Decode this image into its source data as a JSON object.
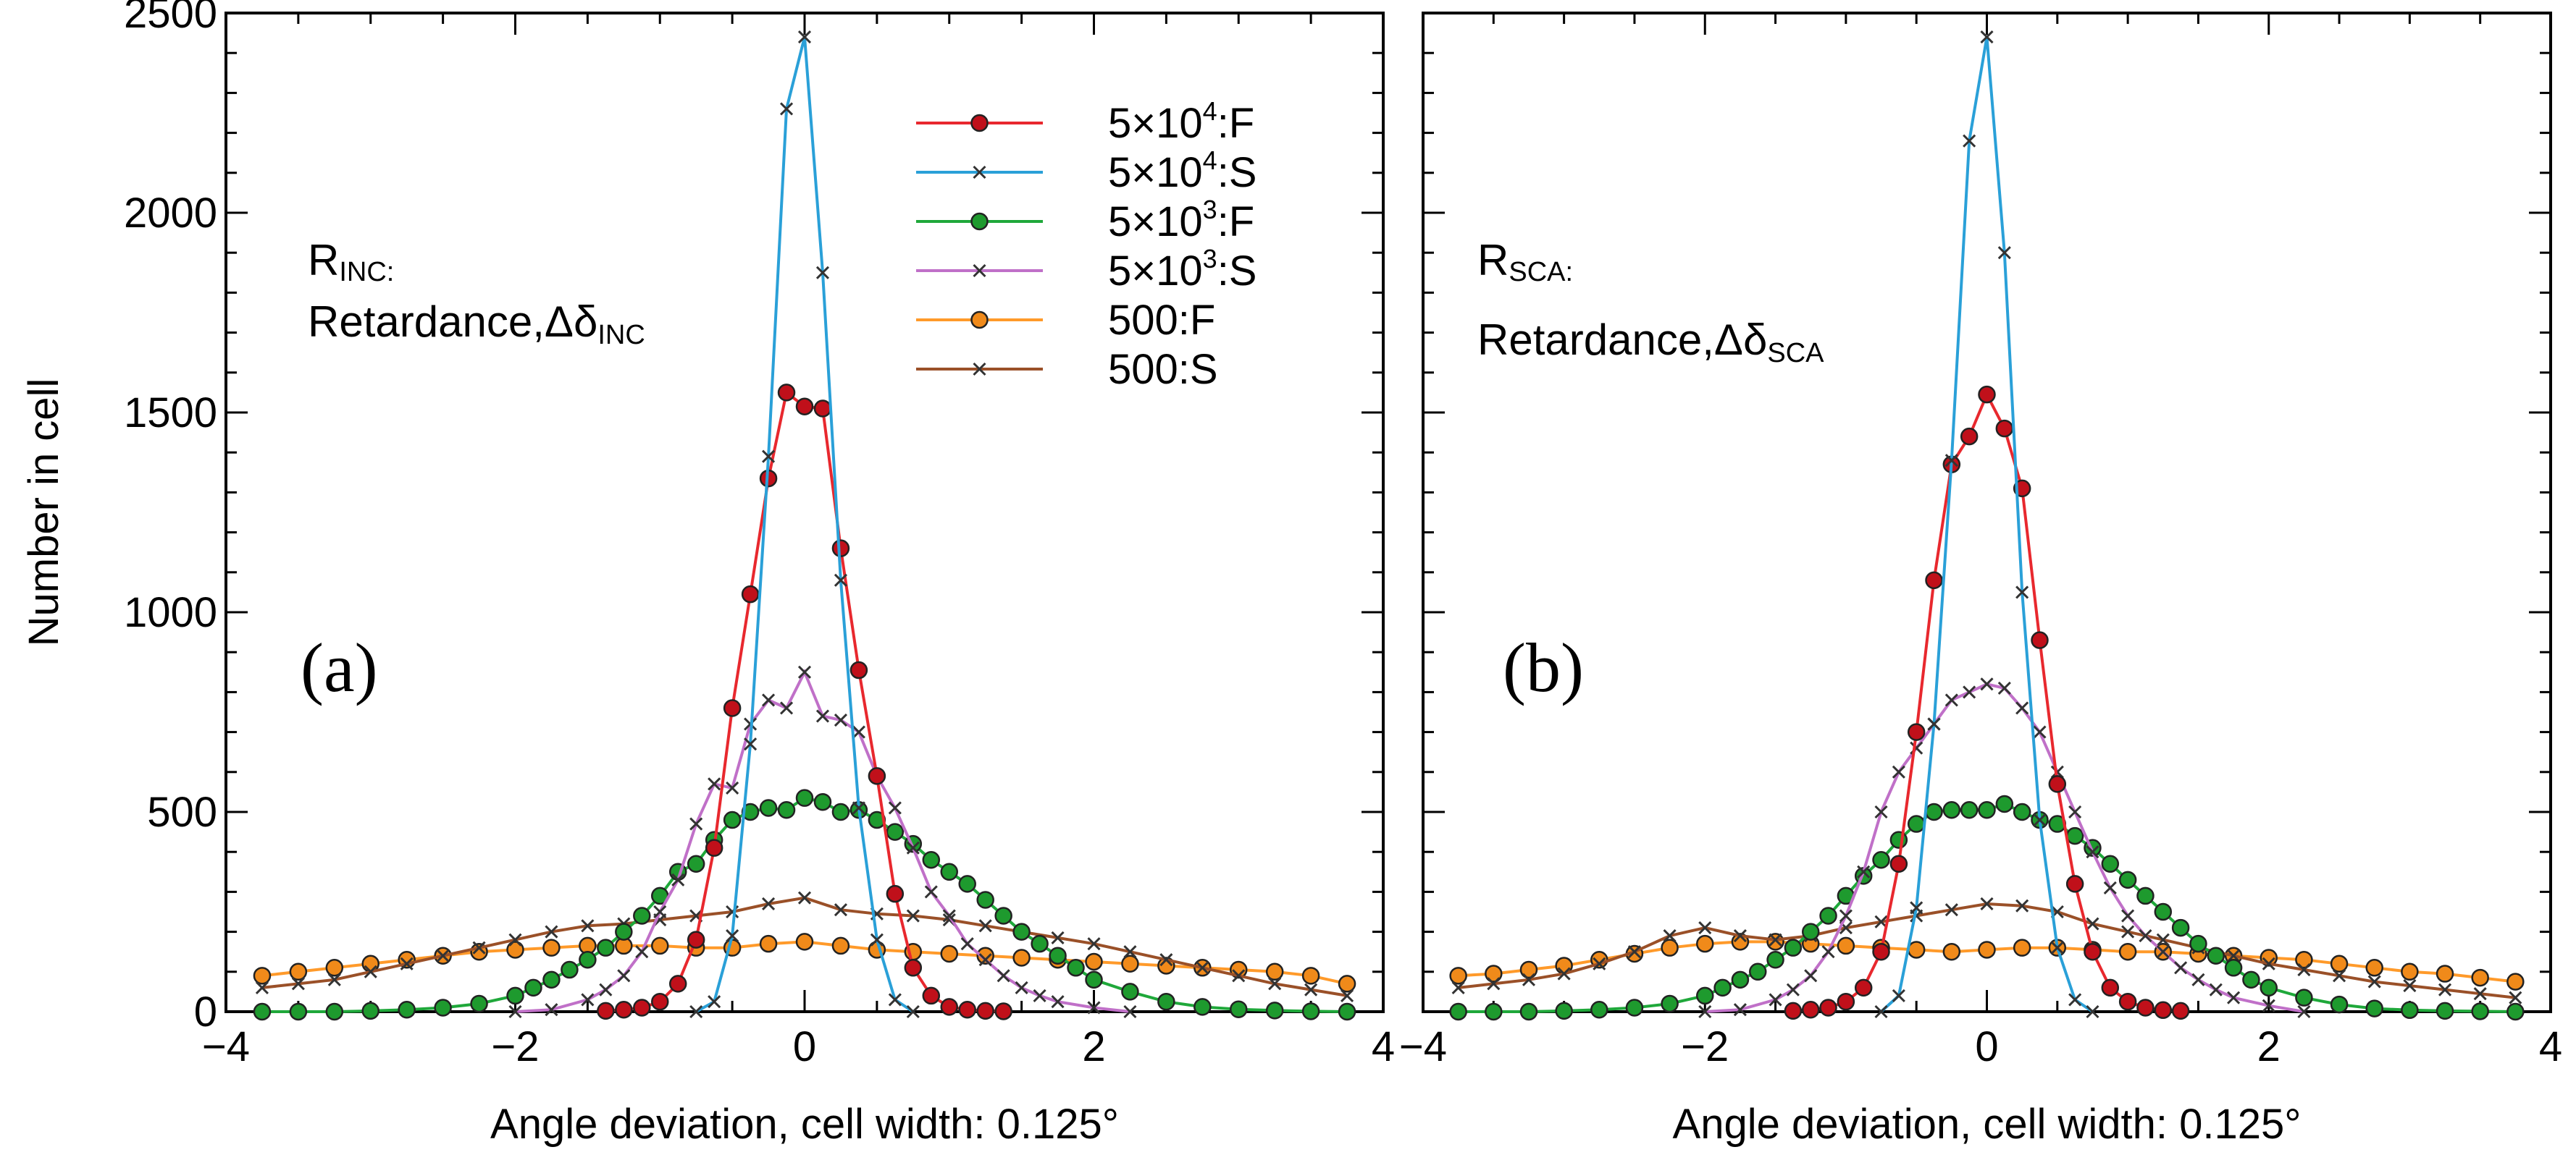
{
  "chart_data": [
    {
      "type": "line",
      "panel_label": "(a)",
      "annotation": {
        "line1_main": "R",
        "line1_sub": "INC:",
        "line2_main": "Retardance,Δδ",
        "line2_sub": "INC"
      },
      "xlabel": "Angle deviation, cell width: 0.125°",
      "ylabel": "Number in cell",
      "xlim": [
        -4,
        4
      ],
      "ylim": [
        0,
        2500
      ],
      "xticks": [
        -4,
        -2,
        0,
        2,
        4
      ],
      "xtick_labels": [
        "−4",
        "−2",
        "0",
        "2",
        "4"
      ],
      "yticks": [
        0,
        500,
        1000,
        1500,
        2000,
        2500
      ],
      "ytick_labels": [
        "0",
        "500",
        "1000",
        "1500",
        "2000",
        "2500"
      ],
      "legend": {
        "position": "top-center",
        "entries": [
          {
            "base": "5×10",
            "exp": "4",
            "suffix": ":F"
          },
          {
            "base": "5×10",
            "exp": "4",
            "suffix": ":S"
          },
          {
            "base": "5×10",
            "exp": "3",
            "suffix": ":F"
          },
          {
            "base": "5×10",
            "exp": "3",
            "suffix": ":S"
          },
          {
            "base": "500",
            "exp": "",
            "suffix": ":F"
          },
          {
            "base": "500",
            "exp": "",
            "suffix": ":S"
          }
        ]
      },
      "series": [
        {
          "name": "5×10^4:F",
          "color": "#e8282e",
          "marker": "circle",
          "marker_fill": "#c0101a",
          "x": [
            -1.375,
            -1.25,
            -1.125,
            -1.0,
            -0.875,
            -0.75,
            -0.625,
            -0.5,
            -0.375,
            -0.25,
            -0.125,
            0.0,
            0.125,
            0.25,
            0.375,
            0.5,
            0.625,
            0.75,
            0.875,
            1.0,
            1.125,
            1.25,
            1.375
          ],
          "values": [
            2,
            5,
            10,
            25,
            70,
            180,
            410,
            760,
            1045,
            1335,
            1550,
            1515,
            1510,
            1160,
            855,
            590,
            295,
            110,
            40,
            12,
            5,
            2,
            1
          ]
        },
        {
          "name": "5×10^4:S",
          "color": "#2aa0d8",
          "marker": "x",
          "marker_fill": "#333333",
          "x": [
            -0.75,
            -0.625,
            -0.5,
            -0.375,
            -0.25,
            -0.125,
            0.0,
            0.125,
            0.25,
            0.375,
            0.5,
            0.625,
            0.75
          ],
          "values": [
            0,
            25,
            190,
            670,
            1390,
            2260,
            2440,
            1850,
            1080,
            510,
            180,
            30,
            0
          ]
        },
        {
          "name": "5×10^3:F",
          "color": "#1fa83a",
          "marker": "circle",
          "marker_fill": "#1e9a2e",
          "x": [
            -3.75,
            -3.5,
            -3.25,
            -3.0,
            -2.75,
            -2.5,
            -2.25,
            -2.0,
            -1.875,
            -1.75,
            -1.625,
            -1.5,
            -1.375,
            -1.25,
            -1.125,
            -1.0,
            -0.875,
            -0.75,
            -0.625,
            -0.5,
            -0.375,
            -0.25,
            -0.125,
            0.0,
            0.125,
            0.25,
            0.375,
            0.5,
            0.625,
            0.75,
            0.875,
            1.0,
            1.125,
            1.25,
            1.375,
            1.5,
            1.625,
            1.75,
            1.875,
            2.0,
            2.25,
            2.5,
            2.75,
            3.0,
            3.25,
            3.5,
            3.75
          ],
          "values": [
            0,
            0,
            0,
            2,
            5,
            10,
            20,
            40,
            60,
            80,
            105,
            130,
            160,
            200,
            240,
            290,
            350,
            370,
            430,
            480,
            500,
            510,
            505,
            535,
            525,
            500,
            505,
            480,
            450,
            420,
            380,
            350,
            320,
            280,
            240,
            200,
            170,
            140,
            110,
            80,
            50,
            25,
            12,
            6,
            3,
            1,
            0
          ]
        },
        {
          "name": "5×10^3:S",
          "color": "#c070c8",
          "marker": "x",
          "marker_fill": "#333333",
          "x": [
            -2.0,
            -1.75,
            -1.5,
            -1.375,
            -1.25,
            -1.125,
            -1.0,
            -0.875,
            -0.75,
            -0.625,
            -0.5,
            -0.375,
            -0.25,
            -0.125,
            0.0,
            0.125,
            0.25,
            0.375,
            0.5,
            0.625,
            0.75,
            0.875,
            1.0,
            1.125,
            1.25,
            1.375,
            1.5,
            1.625,
            1.75,
            2.0,
            2.25
          ],
          "values": [
            0,
            5,
            30,
            55,
            90,
            150,
            250,
            330,
            470,
            570,
            560,
            720,
            780,
            760,
            850,
            740,
            730,
            700,
            590,
            510,
            410,
            300,
            240,
            170,
            130,
            90,
            60,
            40,
            25,
            10,
            0
          ]
        },
        {
          "name": "500:F",
          "color": "#ff9a2a",
          "marker": "circle",
          "marker_fill": "#f08a1a",
          "x": [
            -3.75,
            -3.5,
            -3.25,
            -3.0,
            -2.75,
            -2.5,
            -2.25,
            -2.0,
            -1.75,
            -1.5,
            -1.25,
            -1.0,
            -0.75,
            -0.5,
            -0.25,
            0.0,
            0.25,
            0.5,
            0.75,
            1.0,
            1.25,
            1.5,
            1.75,
            2.0,
            2.25,
            2.5,
            2.75,
            3.0,
            3.25,
            3.5,
            3.75
          ],
          "values": [
            90,
            100,
            110,
            120,
            130,
            140,
            150,
            155,
            160,
            165,
            165,
            165,
            160,
            160,
            170,
            175,
            165,
            155,
            150,
            145,
            140,
            135,
            130,
            125,
            120,
            115,
            110,
            105,
            100,
            90,
            70
          ]
        },
        {
          "name": "500:S",
          "color": "#9a5028",
          "marker": "x",
          "marker_fill": "#333333",
          "x": [
            -3.75,
            -3.5,
            -3.25,
            -3.0,
            -2.75,
            -2.5,
            -2.25,
            -2.0,
            -1.75,
            -1.5,
            -1.25,
            -1.0,
            -0.75,
            -0.5,
            -0.25,
            0.0,
            0.25,
            0.5,
            0.75,
            1.0,
            1.25,
            1.5,
            1.75,
            2.0,
            2.25,
            2.5,
            2.75,
            3.0,
            3.25,
            3.5,
            3.75
          ],
          "values": [
            60,
            70,
            80,
            100,
            120,
            140,
            160,
            180,
            200,
            215,
            220,
            230,
            240,
            250,
            270,
            285,
            255,
            245,
            240,
            230,
            215,
            200,
            185,
            170,
            150,
            130,
            110,
            90,
            70,
            55,
            40
          ]
        }
      ]
    },
    {
      "type": "line",
      "panel_label": "(b)",
      "annotation": {
        "line1_main": "R",
        "line1_sub": "SCA:",
        "line2_main": "Retardance,Δδ",
        "line2_sub": "SCA"
      },
      "xlabel": "Angle deviation, cell width: 0.125°",
      "ylabel": "",
      "xlim": [
        -4,
        4
      ],
      "ylim": [
        0,
        2500
      ],
      "xticks": [
        -4,
        -2,
        0,
        2,
        4
      ],
      "xtick_labels": [
        "−4",
        "−2",
        "0",
        "2",
        "4"
      ],
      "yticks": [
        0,
        500,
        1000,
        1500,
        2000,
        2500
      ],
      "ytick_labels": [],
      "legend": {
        "position": "none",
        "entries": []
      },
      "series": [
        {
          "name": "5×10^4:F",
          "color": "#e8282e",
          "marker": "circle",
          "marker_fill": "#c0101a",
          "x": [
            -1.375,
            -1.25,
            -1.125,
            -1.0,
            -0.875,
            -0.75,
            -0.625,
            -0.5,
            -0.375,
            -0.25,
            -0.125,
            0.0,
            0.125,
            0.25,
            0.375,
            0.5,
            0.625,
            0.75,
            0.875,
            1.0,
            1.125,
            1.25,
            1.375
          ],
          "values": [
            2,
            5,
            10,
            25,
            60,
            150,
            370,
            700,
            1080,
            1370,
            1440,
            1545,
            1460,
            1310,
            930,
            570,
            320,
            150,
            60,
            25,
            10,
            4,
            2
          ]
        },
        {
          "name": "5×10^4:S",
          "color": "#2aa0d8",
          "marker": "x",
          "marker_fill": "#333333",
          "x": [
            -0.75,
            -0.625,
            -0.5,
            -0.375,
            -0.25,
            -0.125,
            0.0,
            0.125,
            0.25,
            0.375,
            0.5,
            0.625,
            0.75
          ],
          "values": [
            0,
            40,
            260,
            720,
            1380,
            2180,
            2440,
            1900,
            1050,
            480,
            160,
            30,
            0
          ]
        },
        {
          "name": "5×10^3:F",
          "color": "#1fa83a",
          "marker": "circle",
          "marker_fill": "#1e9a2e",
          "x": [
            -3.75,
            -3.5,
            -3.25,
            -3.0,
            -2.75,
            -2.5,
            -2.25,
            -2.0,
            -1.875,
            -1.75,
            -1.625,
            -1.5,
            -1.375,
            -1.25,
            -1.125,
            -1.0,
            -0.875,
            -0.75,
            -0.625,
            -0.5,
            -0.375,
            -0.25,
            -0.125,
            0.0,
            0.125,
            0.25,
            0.375,
            0.5,
            0.625,
            0.75,
            0.875,
            1.0,
            1.125,
            1.25,
            1.375,
            1.5,
            1.625,
            1.75,
            1.875,
            2.0,
            2.25,
            2.5,
            2.75,
            3.0,
            3.25,
            3.5,
            3.75
          ],
          "values": [
            0,
            0,
            0,
            2,
            5,
            10,
            20,
            40,
            60,
            80,
            100,
            130,
            160,
            200,
            240,
            290,
            340,
            380,
            430,
            470,
            500,
            505,
            505,
            505,
            520,
            500,
            480,
            470,
            440,
            410,
            370,
            330,
            290,
            250,
            210,
            170,
            140,
            110,
            80,
            60,
            35,
            18,
            8,
            4,
            2,
            1,
            0
          ]
        },
        {
          "name": "5×10^3:S",
          "color": "#c070c8",
          "marker": "x",
          "marker_fill": "#333333",
          "x": [
            -2.0,
            -1.75,
            -1.5,
            -1.375,
            -1.25,
            -1.125,
            -1.0,
            -0.875,
            -0.75,
            -0.625,
            -0.5,
            -0.375,
            -0.25,
            -0.125,
            0.0,
            0.125,
            0.25,
            0.375,
            0.5,
            0.625,
            0.75,
            0.875,
            1.0,
            1.125,
            1.25,
            1.375,
            1.5,
            1.625,
            1.75,
            2.0,
            2.25
          ],
          "values": [
            0,
            5,
            30,
            55,
            90,
            150,
            240,
            350,
            500,
            600,
            660,
            720,
            780,
            800,
            820,
            810,
            760,
            700,
            600,
            500,
            400,
            310,
            240,
            190,
            150,
            110,
            80,
            55,
            35,
            15,
            0
          ]
        },
        {
          "name": "500:F",
          "color": "#ff9a2a",
          "marker": "circle",
          "marker_fill": "#f08a1a",
          "x": [
            -3.75,
            -3.5,
            -3.25,
            -3.0,
            -2.75,
            -2.5,
            -2.25,
            -2.0,
            -1.75,
            -1.5,
            -1.25,
            -1.0,
            -0.75,
            -0.5,
            -0.25,
            0.0,
            0.25,
            0.5,
            0.75,
            1.0,
            1.25,
            1.5,
            1.75,
            2.0,
            2.25,
            2.5,
            2.75,
            3.0,
            3.25,
            3.5,
            3.75
          ],
          "values": [
            90,
            95,
            105,
            115,
            130,
            145,
            160,
            170,
            175,
            175,
            170,
            165,
            160,
            155,
            150,
            155,
            160,
            160,
            155,
            150,
            150,
            145,
            140,
            135,
            130,
            120,
            110,
            100,
            95,
            85,
            75
          ]
        },
        {
          "name": "500:S",
          "color": "#9a5028",
          "marker": "x",
          "marker_fill": "#333333",
          "x": [
            -3.75,
            -3.5,
            -3.25,
            -3.0,
            -2.75,
            -2.5,
            -2.25,
            -2.0,
            -1.75,
            -1.5,
            -1.25,
            -1.0,
            -0.75,
            -0.5,
            -0.25,
            0.0,
            0.25,
            0.5,
            0.75,
            1.0,
            1.25,
            1.5,
            1.75,
            2.0,
            2.25,
            2.5,
            2.75,
            3.0,
            3.25,
            3.5,
            3.75
          ],
          "values": [
            60,
            70,
            80,
            95,
            120,
            150,
            190,
            210,
            190,
            180,
            190,
            210,
            225,
            240,
            255,
            270,
            265,
            250,
            220,
            200,
            180,
            160,
            140,
            120,
            105,
            90,
            75,
            65,
            55,
            45,
            35
          ]
        }
      ]
    }
  ]
}
